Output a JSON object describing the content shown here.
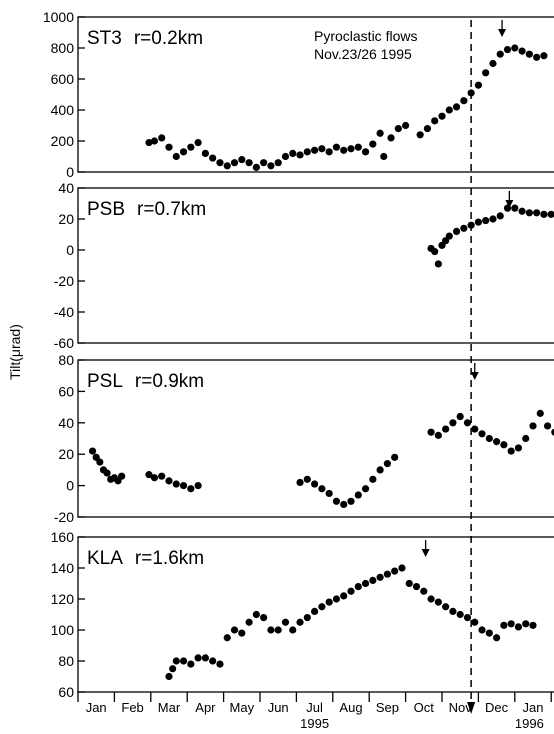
{
  "figure": {
    "ylabel": "Tilt(μrad)",
    "event_annotation": [
      "Pyroclastic flows",
      "Nov.23/26 1995"
    ],
    "year_labels": [
      "1995",
      "1996"
    ],
    "months": [
      "Jan",
      "Feb",
      "Mar",
      "Apr",
      "May",
      "Jun",
      "Jul",
      "Aug",
      "Sep",
      "Oct",
      "Nov",
      "Dec",
      "Jan"
    ]
  },
  "chart_data": [
    {
      "type": "scatter",
      "station": "ST3",
      "distance": "r=0.2km",
      "ylim": [
        0,
        1000
      ],
      "yticks": [
        0,
        200,
        400,
        600,
        800,
        1000
      ],
      "arrow_month": 11.65,
      "x_unit": "month (1995, decimal)",
      "points": [
        [
          1.95,
          190
        ],
        [
          2.1,
          200
        ],
        [
          2.3,
          220
        ],
        [
          2.5,
          160
        ],
        [
          2.7,
          100
        ],
        [
          2.9,
          130
        ],
        [
          3.1,
          160
        ],
        [
          3.3,
          190
        ],
        [
          3.5,
          120
        ],
        [
          3.7,
          90
        ],
        [
          3.9,
          60
        ],
        [
          4.1,
          40
        ],
        [
          4.3,
          60
        ],
        [
          4.5,
          80
        ],
        [
          4.7,
          60
        ],
        [
          4.9,
          30
        ],
        [
          5.1,
          60
        ],
        [
          5.3,
          40
        ],
        [
          5.5,
          60
        ],
        [
          5.7,
          100
        ],
        [
          5.9,
          120
        ],
        [
          6.1,
          110
        ],
        [
          6.3,
          130
        ],
        [
          6.5,
          140
        ],
        [
          6.7,
          150
        ],
        [
          6.9,
          130
        ],
        [
          7.1,
          160
        ],
        [
          7.3,
          140
        ],
        [
          7.5,
          150
        ],
        [
          7.7,
          160
        ],
        [
          7.9,
          130
        ],
        [
          8.1,
          180
        ],
        [
          8.3,
          250
        ],
        [
          8.4,
          100
        ],
        [
          8.6,
          220
        ],
        [
          8.8,
          280
        ],
        [
          9.0,
          300
        ],
        [
          9.4,
          240
        ],
        [
          9.6,
          280
        ],
        [
          9.8,
          330
        ],
        [
          10.0,
          360
        ],
        [
          10.2,
          400
        ],
        [
          10.4,
          420
        ],
        [
          10.6,
          460
        ],
        [
          10.8,
          510
        ],
        [
          11.0,
          560
        ],
        [
          11.2,
          640
        ],
        [
          11.4,
          700
        ],
        [
          11.6,
          760
        ],
        [
          11.8,
          790
        ],
        [
          12.0,
          800
        ],
        [
          12.2,
          780
        ],
        [
          12.4,
          760
        ],
        [
          12.6,
          740
        ],
        [
          12.8,
          750
        ]
      ]
    },
    {
      "type": "scatter",
      "station": "PSB",
      "distance": "r=0.7km",
      "ylim": [
        -60,
        40
      ],
      "yticks": [
        -60,
        -40,
        -20,
        0,
        20,
        40
      ],
      "arrow_month": 11.85,
      "x_unit": "month (1995, decimal)",
      "points": [
        [
          9.7,
          1
        ],
        [
          9.8,
          -1
        ],
        [
          9.9,
          -9
        ],
        [
          10.0,
          3
        ],
        [
          10.1,
          6
        ],
        [
          10.2,
          9
        ],
        [
          10.4,
          12
        ],
        [
          10.6,
          14
        ],
        [
          10.8,
          16
        ],
        [
          11.0,
          18
        ],
        [
          11.2,
          19
        ],
        [
          11.4,
          20
        ],
        [
          11.6,
          22
        ],
        [
          11.8,
          27
        ],
        [
          12.0,
          27
        ],
        [
          12.2,
          25
        ],
        [
          12.4,
          24
        ],
        [
          12.6,
          24
        ],
        [
          12.8,
          23
        ],
        [
          13.0,
          23
        ]
      ]
    },
    {
      "type": "scatter",
      "station": "PSL",
      "distance": "r=0.9km",
      "ylim": [
        -20,
        80
      ],
      "yticks": [
        -20,
        0,
        20,
        40,
        60,
        80
      ],
      "arrow_month": 10.9,
      "x_unit": "month (1995, decimal)",
      "points": [
        [
          0.4,
          22
        ],
        [
          0.5,
          18
        ],
        [
          0.6,
          15
        ],
        [
          0.7,
          10
        ],
        [
          0.8,
          8
        ],
        [
          0.9,
          4
        ],
        [
          1.0,
          5
        ],
        [
          1.1,
          3
        ],
        [
          1.2,
          6
        ],
        [
          1.95,
          7
        ],
        [
          2.1,
          5
        ],
        [
          2.3,
          6
        ],
        [
          2.5,
          3
        ],
        [
          2.7,
          1
        ],
        [
          2.9,
          0
        ],
        [
          3.1,
          -2
        ],
        [
          3.3,
          0
        ],
        [
          6.1,
          2
        ],
        [
          6.3,
          4
        ],
        [
          6.5,
          1
        ],
        [
          6.7,
          -2
        ],
        [
          6.9,
          -5
        ],
        [
          7.1,
          -10
        ],
        [
          7.3,
          -12
        ],
        [
          7.5,
          -10
        ],
        [
          7.7,
          -6
        ],
        [
          7.9,
          -2
        ],
        [
          8.1,
          4
        ],
        [
          8.3,
          10
        ],
        [
          8.5,
          14
        ],
        [
          8.7,
          18
        ],
        [
          9.7,
          34
        ],
        [
          9.9,
          32
        ],
        [
          10.1,
          36
        ],
        [
          10.3,
          40
        ],
        [
          10.5,
          44
        ],
        [
          10.7,
          40
        ],
        [
          10.9,
          36
        ],
        [
          11.1,
          33
        ],
        [
          11.3,
          30
        ],
        [
          11.5,
          28
        ],
        [
          11.7,
          26
        ],
        [
          11.9,
          22
        ],
        [
          12.1,
          24
        ],
        [
          12.3,
          30
        ],
        [
          12.5,
          38
        ],
        [
          12.7,
          46
        ],
        [
          12.9,
          38
        ],
        [
          13.1,
          34
        ],
        [
          13.3,
          36
        ]
      ]
    },
    {
      "type": "scatter",
      "station": "KLA",
      "distance": "r=1.6km",
      "ylim": [
        60,
        160
      ],
      "yticks": [
        60,
        80,
        100,
        120,
        140,
        160
      ],
      "arrow_month": 9.55,
      "x_unit": "month (1995, decimal)",
      "points": [
        [
          2.5,
          70
        ],
        [
          2.6,
          75
        ],
        [
          2.7,
          80
        ],
        [
          2.9,
          80
        ],
        [
          3.1,
          78
        ],
        [
          3.3,
          82
        ],
        [
          3.5,
          82
        ],
        [
          3.7,
          80
        ],
        [
          3.9,
          78
        ],
        [
          4.1,
          95
        ],
        [
          4.3,
          100
        ],
        [
          4.5,
          98
        ],
        [
          4.7,
          105
        ],
        [
          4.9,
          110
        ],
        [
          5.1,
          108
        ],
        [
          5.3,
          100
        ],
        [
          5.5,
          100
        ],
        [
          5.7,
          105
        ],
        [
          5.9,
          100
        ],
        [
          6.1,
          105
        ],
        [
          6.3,
          108
        ],
        [
          6.5,
          112
        ],
        [
          6.7,
          115
        ],
        [
          6.9,
          118
        ],
        [
          7.1,
          120
        ],
        [
          7.3,
          122
        ],
        [
          7.5,
          125
        ],
        [
          7.7,
          128
        ],
        [
          7.9,
          130
        ],
        [
          8.1,
          132
        ],
        [
          8.3,
          134
        ],
        [
          8.5,
          136
        ],
        [
          8.7,
          138
        ],
        [
          8.9,
          140
        ],
        [
          9.1,
          130
        ],
        [
          9.3,
          128
        ],
        [
          9.5,
          125
        ],
        [
          9.7,
          120
        ],
        [
          9.9,
          118
        ],
        [
          10.1,
          115
        ],
        [
          10.3,
          112
        ],
        [
          10.5,
          110
        ],
        [
          10.7,
          108
        ],
        [
          10.9,
          105
        ],
        [
          11.1,
          100
        ],
        [
          11.3,
          98
        ],
        [
          11.5,
          95
        ],
        [
          11.7,
          103
        ],
        [
          11.9,
          104
        ],
        [
          12.1,
          102
        ],
        [
          12.3,
          104
        ],
        [
          12.5,
          103
        ]
      ]
    }
  ]
}
